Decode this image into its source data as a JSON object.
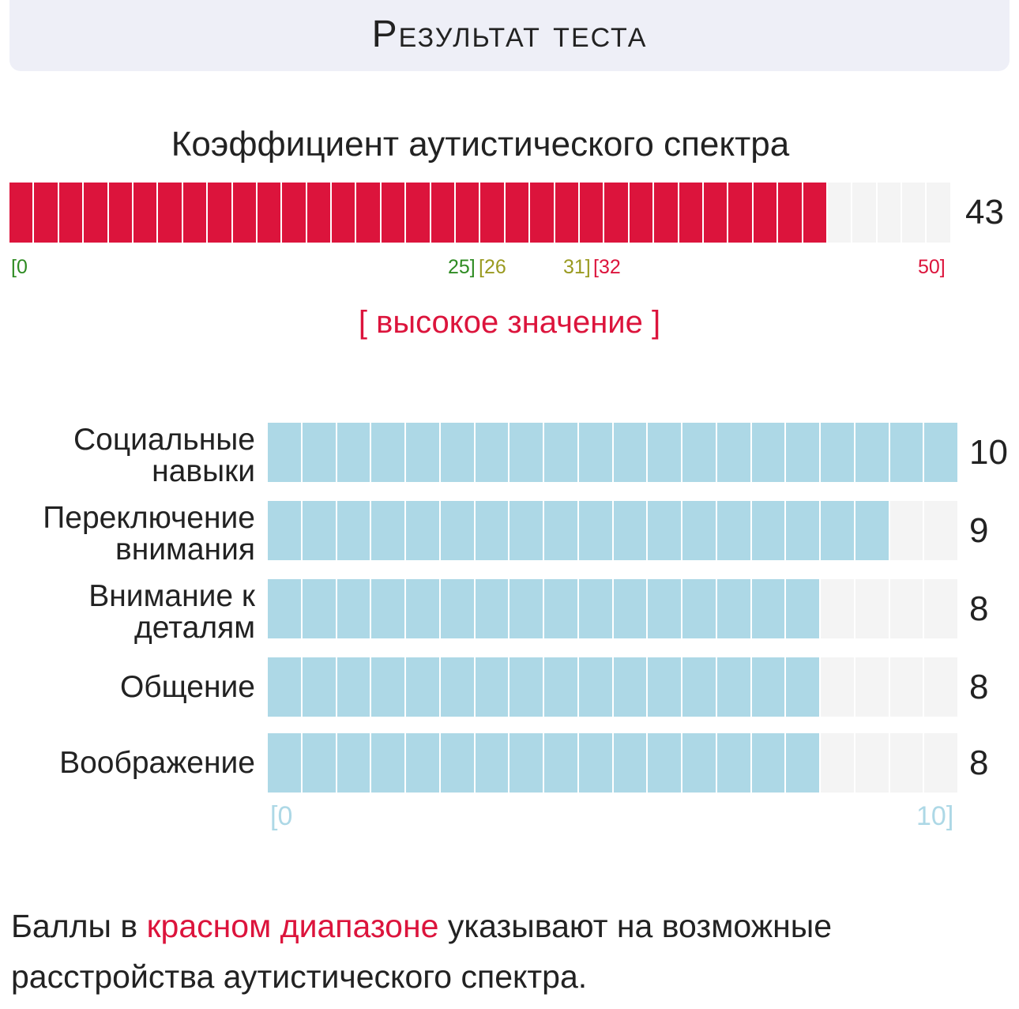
{
  "header": {
    "title": "Результат теста"
  },
  "aq": {
    "title": "Коэффициент аутистического спектра",
    "score": 43,
    "max": 50,
    "score_label": "43",
    "fill_color": "#dc143c",
    "empty_color": "#f4f4f4",
    "ticks": [
      {
        "text": "[0",
        "color": "#2e8b22"
      },
      {
        "text": "25]",
        "color": "#2e8b22"
      },
      {
        "text": "[26",
        "color": "#9a9a20"
      },
      {
        "text": "31]",
        "color": "#9a9a20"
      },
      {
        "text": "[32",
        "color": "#dc143c"
      },
      {
        "text": "50]",
        "color": "#dc143c"
      }
    ],
    "level_text": "[ высокое значение ]",
    "level_color": "#dc143c"
  },
  "subscales": {
    "max": 10,
    "fill_color": "#add8e6",
    "empty_color": "#f4f4f4",
    "items": [
      {
        "label_lines": [
          "Социальные",
          "навыки"
        ],
        "score": 10,
        "score_label": "10"
      },
      {
        "label_lines": [
          "Переключение",
          "внимания"
        ],
        "score": 9,
        "score_label": "9"
      },
      {
        "label_lines": [
          "Внимание к",
          "деталям"
        ],
        "score": 8,
        "score_label": "8"
      },
      {
        "label_lines": [
          "Общение"
        ],
        "score": 8,
        "score_label": "8"
      },
      {
        "label_lines": [
          "Воображение"
        ],
        "score": 8,
        "score_label": "8"
      }
    ],
    "tick_min": "[0",
    "tick_max": "10]",
    "tick_color": "#add8e6"
  },
  "footer": {
    "text_before": "Баллы в ",
    "highlight": "красном диапазоне",
    "text_after": " указывают на возможные расстройства аутистического спектра.",
    "highlight_color": "#dc143c"
  }
}
